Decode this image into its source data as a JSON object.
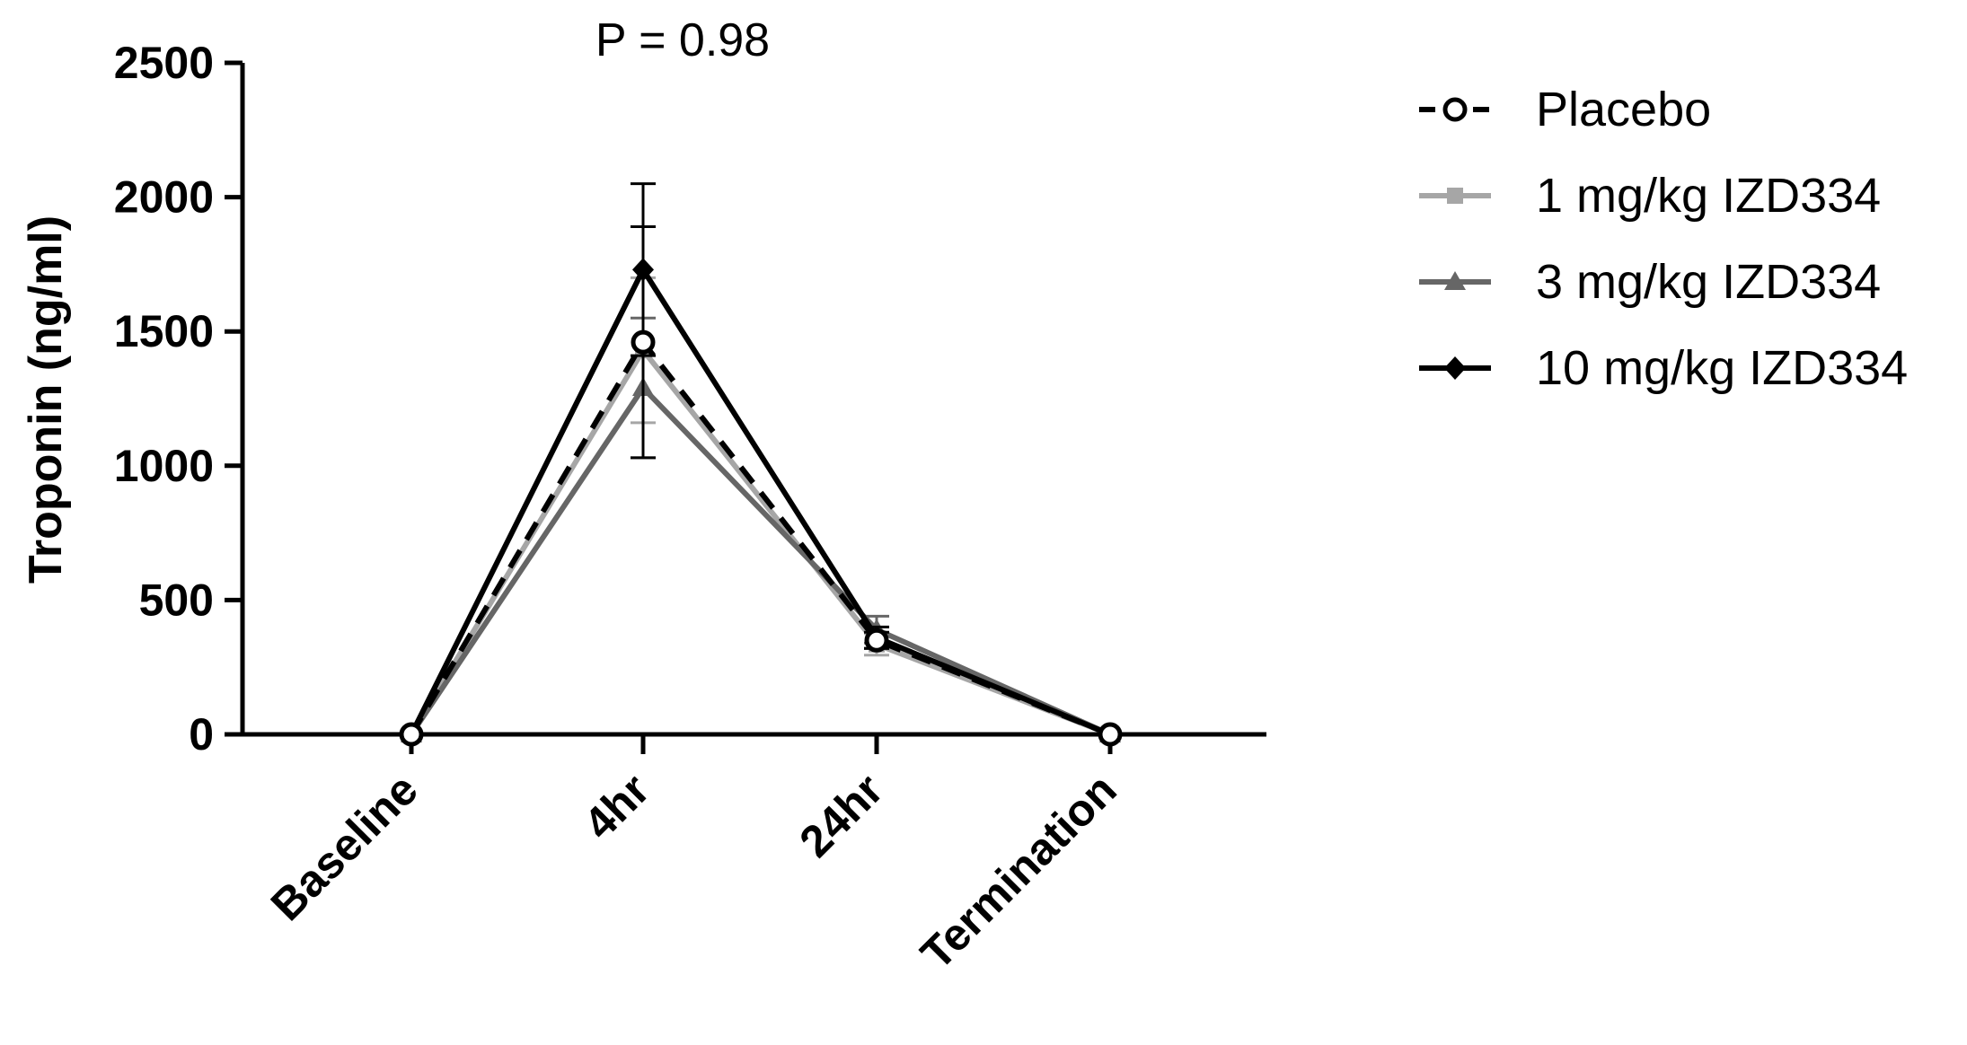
{
  "chart_data": {
    "type": "line",
    "title": "",
    "annotation": "P = 0.98",
    "xlabel": "",
    "ylabel": "Troponin (ng/ml)",
    "categories": [
      "Baseline",
      "4hr",
      "24hr",
      "Termination"
    ],
    "ylim": [
      0,
      2500
    ],
    "yticks": [
      0,
      500,
      1000,
      1500,
      2000,
      2500
    ],
    "grid": false,
    "legend_position": "right",
    "series": [
      {
        "name": "Placebo",
        "color": "#000000",
        "dash": "dashed",
        "marker": "open-circle",
        "values": [
          0,
          1460,
          350,
          0
        ],
        "error": [
          0,
          430,
          30,
          0
        ]
      },
      {
        "name": "1 mg/kg IZD334",
        "color": "#a6a6a6",
        "dash": "solid",
        "marker": "square",
        "values": [
          0,
          1430,
          335,
          0
        ],
        "error": [
          0,
          270,
          40,
          0
        ]
      },
      {
        "name": "3 mg/kg IZD334",
        "color": "#666666",
        "dash": "solid",
        "marker": "triangle",
        "values": [
          0,
          1290,
          390,
          0
        ],
        "error": [
          0,
          260,
          50,
          0
        ]
      },
      {
        "name": "10 mg/kg IZD334",
        "color": "#000000",
        "dash": "solid",
        "marker": "diamond",
        "values": [
          0,
          1730,
          360,
          0
        ],
        "error": [
          0,
          320,
          40,
          0
        ]
      }
    ]
  }
}
